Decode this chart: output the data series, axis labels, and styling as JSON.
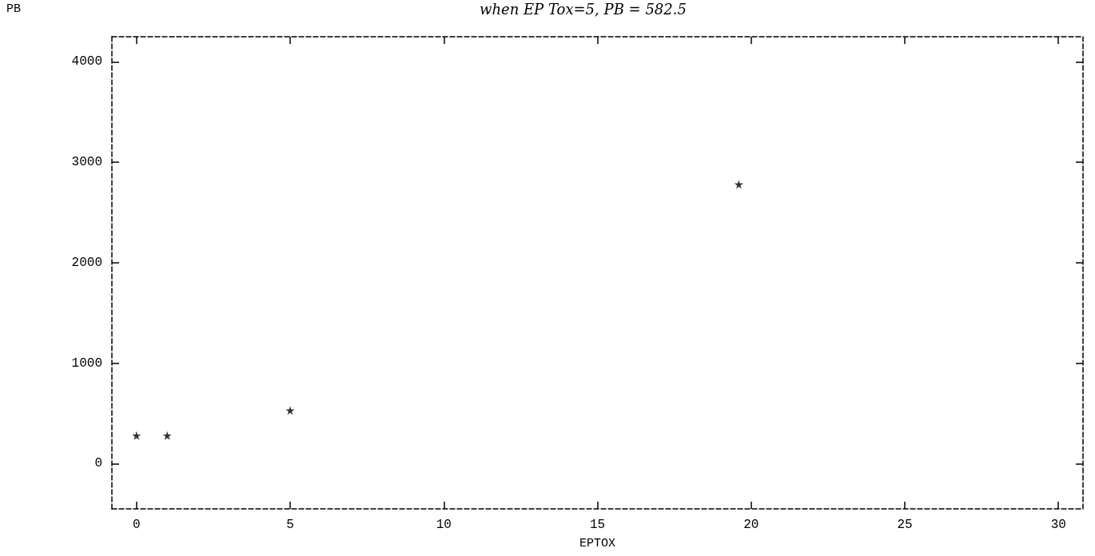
{
  "chart_data": {
    "type": "scatter",
    "xlabel": "EPTOX",
    "ylabel": "PB",
    "annotations": [
      "when EP Tox=5, PB = 582.5"
    ],
    "series": [
      {
        "color": "#000000",
        "x": [
          0,
          1,
          5,
          19.6
        ],
        "values": [
          280,
          280,
          530,
          2780
        ]
      }
    ],
    "marker": "star",
    "xlim": [
      -0.8,
      30.8
    ],
    "xticks": [
      0,
      5,
      10,
      15,
      20,
      25,
      30
    ],
    "ylim": [
      -450,
      4250
    ],
    "yticks": [
      0,
      1000,
      2000,
      3000,
      4000
    ]
  }
}
